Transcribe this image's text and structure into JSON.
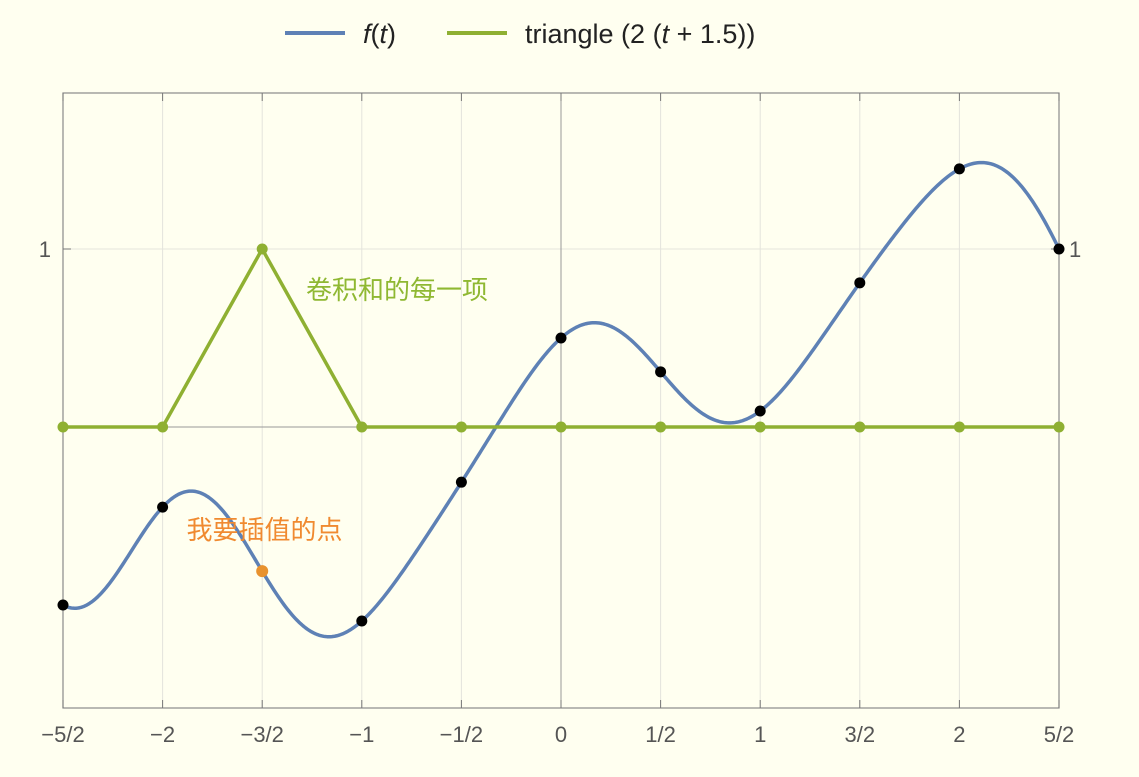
{
  "chart_data": {
    "type": "line",
    "title": "",
    "xlabel": "",
    "ylabel": "",
    "xlim": [
      -2.5,
      2.5
    ],
    "ylim": [
      -1.45,
      1.3
    ],
    "grid": true,
    "legend_position": "top-center",
    "x_ticks": [
      {
        "value": -2.5,
        "label": "−5/2"
      },
      {
        "value": -2,
        "label": "−2"
      },
      {
        "value": -1.5,
        "label": "−3/2"
      },
      {
        "value": -1,
        "label": "−1"
      },
      {
        "value": -0.5,
        "label": "−1/2"
      },
      {
        "value": 0,
        "label": "0"
      },
      {
        "value": 0.5,
        "label": "1/2"
      },
      {
        "value": 1,
        "label": "1"
      },
      {
        "value": 1.5,
        "label": "3/2"
      },
      {
        "value": 2,
        "label": "2"
      },
      {
        "value": 2.5,
        "label": "5/2"
      }
    ],
    "y_ticks": [
      {
        "value": 1,
        "label": "1"
      }
    ],
    "series": [
      {
        "name": "f(t)",
        "legend_parts": [
          {
            "text": "f",
            "italic": true
          },
          {
            "text": "(",
            "italic": false
          },
          {
            "text": "t",
            "italic": true
          },
          {
            "text": ")",
            "italic": false
          }
        ],
        "color": "#5e81b5",
        "style": "smooth-interpolation",
        "x": [
          -2.5,
          -2,
          -1.5,
          -1,
          -0.5,
          0,
          0.5,
          1,
          1.5,
          2,
          2.5
        ],
        "values": [
          -1.0,
          -0.45,
          -0.81,
          -1.09,
          -0.31,
          0.5,
          0.31,
          0.09,
          0.81,
          1.45,
          1.0
        ]
      },
      {
        "name": "triangle (2 (t + 1.5))",
        "legend_parts": [
          {
            "text": "triangle (2 (",
            "italic": false
          },
          {
            "text": "t",
            "italic": true
          },
          {
            "text": " + 1.5))",
            "italic": false
          }
        ],
        "color": "#8fb032",
        "style": "piecewise-linear",
        "x": [
          -2.5,
          -2,
          -1.5,
          -1,
          -0.5,
          0,
          0.5,
          1,
          1.5,
          2,
          2.5
        ],
        "values": [
          0,
          0,
          1,
          0,
          0,
          0,
          0,
          0,
          0,
          0,
          0
        ]
      }
    ],
    "highlight_point": {
      "x": -1.5,
      "y": -0.81,
      "color": "#e8922e"
    },
    "annotations": [
      {
        "text": "卷积和的每一项",
        "color": "#8fb832",
        "x": -1.28,
        "y": 0.72
      },
      {
        "text": "我要插值的点",
        "color": "#f08a30",
        "x": -1.88,
        "y": -0.63
      }
    ]
  }
}
